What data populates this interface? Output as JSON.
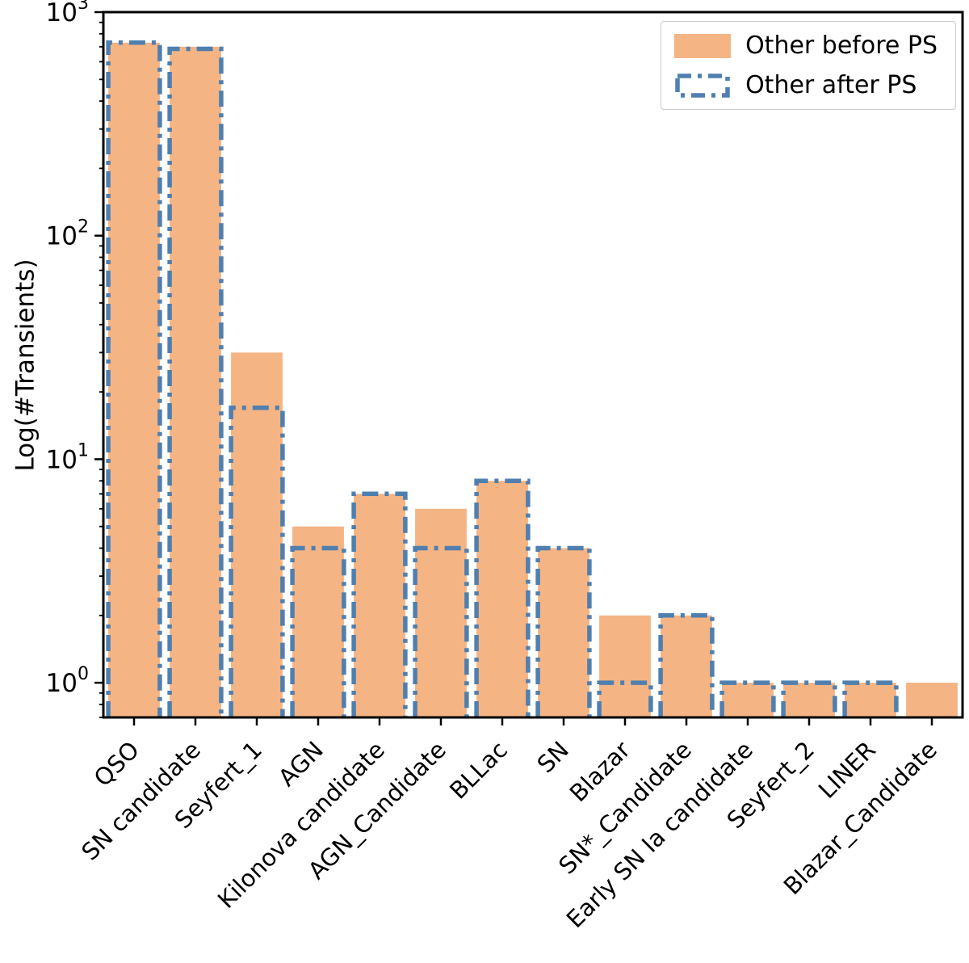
{
  "chart_data": {
    "type": "bar",
    "title": "",
    "xlabel": "",
    "ylabel": "Log(#Transients)",
    "y_scale": "log",
    "ylim": [
      0.7,
      1000
    ],
    "ytick_exponents": [
      0,
      1,
      2,
      3
    ],
    "grid": false,
    "legend_position": "upper right",
    "categories": [
      "QSO",
      "SN candidate",
      "Seyfert_1",
      "AGN",
      "Kilonova candidate",
      "AGN_Candidate",
      "BLLac",
      "SN",
      "Blazar",
      "SN*_Candidate",
      "Early SN Ia candidate",
      "Seyfert_2",
      "LINER",
      "Blazar_Candidate"
    ],
    "series": [
      {
        "name": "Other before PS",
        "style": "filled-bar",
        "color": "#F4B483",
        "values": [
          730,
          700,
          30,
          5,
          7,
          6,
          8,
          4,
          2,
          2,
          1,
          1,
          1,
          1
        ]
      },
      {
        "name": "Other after PS",
        "style": "dashdot-step-outline",
        "color": "#4F7FAF",
        "values": [
          730,
          685,
          17,
          4,
          7,
          4,
          8,
          4,
          1,
          2,
          1,
          1,
          1,
          0
        ]
      }
    ]
  },
  "axis_color": "#000000"
}
